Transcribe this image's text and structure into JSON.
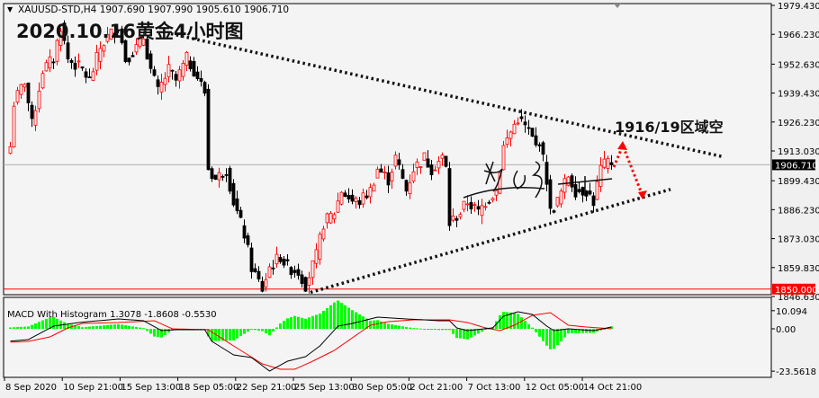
{
  "header": {
    "symbol_line": "XAUUSD-STD,H4  1907.690 1907.990 1905.610 1906.710",
    "title": "2020.10.16黄金4小时图",
    "annotation": "1916/19区域空"
  },
  "colors": {
    "up_candle": "#ff0000",
    "down_candle": "#000000",
    "macd_main": "#000000",
    "macd_signal": "#ff0000",
    "macd_histogram": "#00ff00",
    "current_price_tag": "#000000",
    "level_tag": "#ff0000",
    "background": "#f4f4f4"
  },
  "chart_data": [
    {
      "type": "candlestick",
      "symbol": "XAUUSD-STD",
      "timeframe": "H4",
      "last_bar": {
        "open": 1907.69,
        "high": 1907.99,
        "low": 1905.61,
        "close": 1906.71
      },
      "ylim": [
        1846.63,
        1979.43
      ],
      "y_ticks": [
        "1979.430",
        "1966.230",
        "1952.630",
        "1939.430",
        "1926.230",
        "1913.030",
        "1899.430",
        "1886.230",
        "1873.030",
        "1859.830",
        "1846.630"
      ],
      "current_price_label": "1906.710",
      "current_price": 1906.71,
      "level_label": "1850.000",
      "level": 1850.0,
      "x_ticks": [
        "8 Sep 2020",
        "10 Sep 21:00",
        "15 Sep 13:00",
        "18 Sep 05:00",
        "22 Sep 21:00",
        "25 Sep 13:00",
        "30 Sep 05:00",
        "2 Oct 21:00",
        "7 Oct 13:00",
        "12 Oct 05:00",
        "14 Oct 21:00"
      ],
      "close_path": [
        [
          0,
          1915
        ],
        [
          1,
          1935
        ],
        [
          4,
          1945
        ],
        [
          6,
          1925
        ],
        [
          9,
          1950
        ],
        [
          12,
          1955
        ],
        [
          14,
          1970
        ],
        [
          16,
          1955
        ],
        [
          20,
          1950
        ],
        [
          22,
          1945
        ],
        [
          25,
          1960
        ],
        [
          27,
          1965
        ],
        [
          30,
          1970
        ],
        [
          32,
          1955
        ],
        [
          35,
          1960
        ],
        [
          37,
          1965
        ],
        [
          39,
          1950
        ],
        [
          41,
          1940
        ],
        [
          44,
          1950
        ],
        [
          46,
          1945
        ],
        [
          49,
          1955
        ],
        [
          51,
          1950
        ],
        [
          54,
          1940
        ],
        [
          55,
          1905
        ],
        [
          57,
          1900
        ],
        [
          60,
          1905
        ],
        [
          62,
          1890
        ],
        [
          65,
          1875
        ],
        [
          67,
          1860
        ],
        [
          70,
          1850
        ],
        [
          72,
          1860
        ],
        [
          75,
          1865
        ],
        [
          77,
          1860
        ],
        [
          80,
          1858
        ],
        [
          82,
          1852
        ],
        [
          85,
          1865
        ],
        [
          87,
          1880
        ],
        [
          90,
          1885
        ],
        [
          92,
          1895
        ],
        [
          95,
          1890
        ],
        [
          97,
          1890
        ],
        [
          100,
          1895
        ],
        [
          102,
          1905
        ],
        [
          105,
          1900
        ],
        [
          107,
          1910
        ],
        [
          110,
          1895
        ],
        [
          112,
          1905
        ],
        [
          115,
          1910
        ],
        [
          117,
          1905
        ],
        [
          120,
          1910
        ],
        [
          121,
          1905
        ],
        [
          122,
          1880
        ],
        [
          125,
          1885
        ],
        [
          127,
          1890
        ],
        [
          130,
          1885
        ],
        [
          132,
          1890
        ],
        [
          135,
          1895
        ],
        [
          137,
          1915
        ],
        [
          140,
          1925
        ],
        [
          141,
          1928
        ],
        [
          144,
          1922
        ],
        [
          146,
          1915
        ],
        [
          147,
          1918
        ],
        [
          149,
          1900
        ],
        [
          150,
          1885
        ],
        [
          152,
          1890
        ],
        [
          155,
          1902
        ],
        [
          157,
          1895
        ],
        [
          160,
          1895
        ],
        [
          162,
          1890
        ],
        [
          164,
          1905
        ],
        [
          166,
          1908
        ],
        [
          167,
          1906.71
        ]
      ],
      "trendlines": [
        {
          "style": "dotted",
          "from_price": 1966.5,
          "to_price": 1910.5,
          "role": "resistance"
        },
        {
          "style": "dotted",
          "from_price": 1848.5,
          "to_price": 1895.5,
          "role": "support"
        }
      ]
    },
    {
      "type": "line",
      "title": "MACD With Histogram 1.3078 -1.8608 -0.5530",
      "ylim": [
        -23.5618,
        10.094
      ],
      "y_ticks": [
        "10.094",
        "0.00",
        "-23.5618"
      ],
      "series": [
        {
          "name": "main",
          "points": [
            [
              -1,
              -7
            ],
            [
              5,
              -6
            ],
            [
              12,
              1.5
            ],
            [
              19,
              3.5
            ],
            [
              30,
              5.5
            ],
            [
              37,
              4.5
            ],
            [
              42,
              -1
            ],
            [
              46,
              -0.5
            ],
            [
              54,
              -0.5
            ],
            [
              56,
              -7
            ],
            [
              62,
              -14.5
            ],
            [
              67,
              -16
            ],
            [
              72,
              -23.5
            ],
            [
              77,
              -18
            ],
            [
              82,
              -15.5
            ],
            [
              86,
              -9.5
            ],
            [
              91,
              1.5
            ],
            [
              95,
              3
            ],
            [
              102,
              6.5
            ],
            [
              110,
              5.5
            ],
            [
              115,
              5
            ],
            [
              119,
              4.5
            ],
            [
              122,
              4.5
            ],
            [
              124,
              0.5
            ],
            [
              127,
              -1
            ],
            [
              134,
              0.5
            ],
            [
              137,
              7
            ],
            [
              141,
              9.5
            ],
            [
              145,
              8
            ],
            [
              149,
              1.5
            ],
            [
              151,
              -1
            ],
            [
              155,
              0
            ],
            [
              162,
              -1
            ],
            [
              167,
              1
            ]
          ]
        },
        {
          "name": "signal",
          "points": [
            [
              -1,
              -7.5
            ],
            [
              5,
              -7
            ],
            [
              11,
              -4.5
            ],
            [
              16,
              0.5
            ],
            [
              20,
              3
            ],
            [
              30,
              3.5
            ],
            [
              40,
              4.5
            ],
            [
              45,
              0
            ],
            [
              55,
              -0.5
            ],
            [
              62,
              -9.5
            ],
            [
              70,
              -19.5
            ],
            [
              75,
              -22.5
            ],
            [
              79,
              -22.5
            ],
            [
              84,
              -18
            ],
            [
              90,
              -12
            ],
            [
              95,
              -5
            ],
            [
              100,
              2
            ],
            [
              105,
              4
            ],
            [
              112,
              5
            ],
            [
              122,
              5
            ],
            [
              127,
              3.5
            ],
            [
              132,
              0.5
            ],
            [
              136,
              -1
            ],
            [
              140,
              2
            ],
            [
              145,
              7.5
            ],
            [
              150,
              9
            ],
            [
              155,
              2
            ],
            [
              160,
              1
            ],
            [
              167,
              0
            ]
          ]
        }
      ]
    }
  ]
}
